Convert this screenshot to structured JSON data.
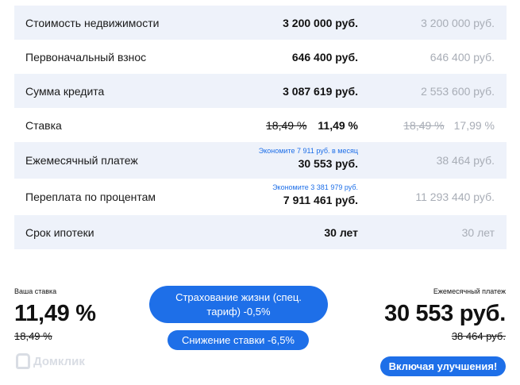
{
  "table": {
    "rows": [
      {
        "label": "Стоимость недвижимости",
        "value": "3 200 000 руб.",
        "base": "3 200 000 руб."
      },
      {
        "label": "Первоначальный взнос",
        "value": "646 400 руб.",
        "base": "646 400 руб."
      },
      {
        "label": "Сумма кредита",
        "value": "3 087 619 руб.",
        "base": "2 553 600 руб."
      },
      {
        "label": "Ставка",
        "value_old": "18,49 %",
        "value": "11,49 %",
        "base_old": "18,49 %",
        "base": "17,99 %"
      },
      {
        "label": "Ежемесячный платеж",
        "hint": "Экономите 7 911 руб. в месяц",
        "value": "30 553 руб.",
        "base": "38 464 руб."
      },
      {
        "label": "Переплата по процентам",
        "hint": "Экономите 3 381 979 руб.",
        "value": "7 911 461 руб.",
        "base": "11 293 440 руб."
      },
      {
        "label": "Срок ипотеки",
        "value": "30 лет",
        "base": "30 лет"
      }
    ]
  },
  "summary": {
    "rate_label": "Ваша ставка",
    "rate": "11,49 %",
    "rate_old": "18,49 %",
    "insurance_button": "Страхование жизни (спец. тариф) -0,5%",
    "rate_discount_button": "Снижение ставки -6,5%",
    "payment_label": "Ежемесячный платеж",
    "payment": "30 553 руб.",
    "payment_old": "38 464 руб.",
    "improve_button": "Включая улучшения!"
  },
  "watermark": "Домклик",
  "colors": {
    "accent": "#1e6fe8",
    "row_shade": "#eef2fa",
    "muted": "#a8adb6"
  }
}
